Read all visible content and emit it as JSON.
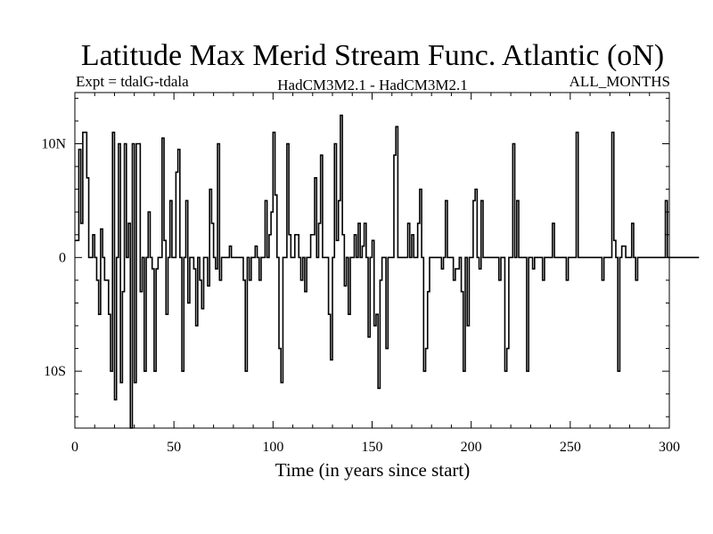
{
  "chart_data": {
    "type": "line",
    "title": "Latitude Max Merid Stream Func. Atlantic (oN)",
    "subtitle_left": "Expt = tdalG-tdala",
    "subtitle_center": "HadCM3M2.1 - HadCM3M2.1",
    "subtitle_right": "ALL_MONTHS",
    "xlabel": "Time (in years since start)",
    "ylabel": "",
    "xlim": [
      0,
      300
    ],
    "ylim": [
      -15,
      14.5
    ],
    "x_ticks": [
      0,
      50,
      100,
      150,
      200,
      250,
      300
    ],
    "x_tick_labels": [
      "0",
      "50",
      "100",
      "150",
      "200",
      "250",
      "300"
    ],
    "y_ticks": [
      -10,
      0,
      10
    ],
    "y_tick_labels": [
      "10S",
      "0",
      "10N"
    ],
    "series": [
      {
        "name": "tdalG-tdala",
        "x_start": 0,
        "x_step": 1,
        "values": [
          1.5,
          1.5,
          9.5,
          3,
          11,
          11,
          7,
          0,
          0,
          2,
          0,
          -2,
          -5,
          2.5,
          0,
          -2,
          -2,
          -5,
          -10,
          11,
          -12.5,
          0,
          10,
          -11,
          -3,
          10,
          0,
          3,
          -15,
          10,
          -11,
          10,
          10,
          -3,
          0,
          -10,
          0,
          4,
          0,
          -1,
          -10,
          -1,
          0,
          0,
          10.5,
          1.5,
          -5,
          0,
          5,
          0,
          0,
          7.5,
          9.5,
          0,
          -10,
          0,
          5,
          -4,
          0,
          0,
          -1,
          -6,
          0,
          -2,
          -4.5,
          0,
          0,
          -2.5,
          6,
          3,
          0,
          -1,
          10,
          -2,
          0,
          0,
          0,
          0,
          1,
          0,
          0,
          0,
          0,
          0,
          0,
          -2,
          -10,
          0,
          -2,
          0,
          0,
          1,
          0,
          -2,
          0,
          0,
          5,
          0,
          2,
          4,
          11,
          5.5,
          0,
          -8,
          -11,
          0,
          0,
          10,
          2,
          0,
          0,
          2,
          2,
          0,
          -2,
          0,
          -3,
          0,
          0,
          2,
          2,
          7,
          0,
          3,
          9,
          0,
          0,
          0,
          -5,
          -9,
          0,
          10,
          1.5,
          5,
          12.5,
          2,
          -2.5,
          0,
          -5,
          0,
          0,
          2,
          0,
          3,
          0,
          1,
          3,
          0,
          -7,
          0,
          1.5,
          -6,
          -5,
          -11.5,
          -2,
          0,
          0,
          -8,
          0,
          0,
          0,
          9,
          11.5,
          0,
          0,
          0,
          0,
          0,
          3,
          0,
          2,
          0,
          0,
          3,
          6,
          0,
          -10,
          -8,
          -3,
          0,
          0,
          0,
          0,
          0,
          0,
          -1,
          0,
          5,
          0,
          0,
          0,
          -2,
          -1,
          -1,
          0,
          -3,
          -10,
          0,
          -6,
          0,
          0,
          5,
          6,
          0,
          -1,
          5,
          0,
          0,
          0,
          0,
          0,
          0,
          0,
          0,
          -2,
          0,
          0,
          -10,
          -8,
          0,
          0,
          10,
          0,
          5,
          0,
          0,
          0,
          0,
          -10,
          0,
          0,
          -1,
          0,
          0,
          0,
          0,
          -2,
          0,
          0,
          0,
          0,
          3,
          0,
          0,
          0,
          0,
          0,
          0,
          -2,
          0,
          0,
          0,
          0,
          11,
          0,
          0,
          0,
          0,
          0,
          0,
          0,
          0,
          0,
          0,
          0,
          0,
          -2,
          0,
          0,
          0,
          0,
          11,
          1.5,
          0,
          -10,
          0,
          1,
          1,
          0,
          0,
          0,
          3,
          0,
          -2,
          0,
          0,
          0,
          0,
          0,
          0,
          0,
          0,
          0,
          0,
          0,
          0,
          0,
          0,
          5,
          0,
          0,
          0,
          0,
          0,
          0,
          0,
          0,
          0,
          0,
          0,
          0,
          0,
          0,
          0,
          0
        ]
      }
    ]
  }
}
